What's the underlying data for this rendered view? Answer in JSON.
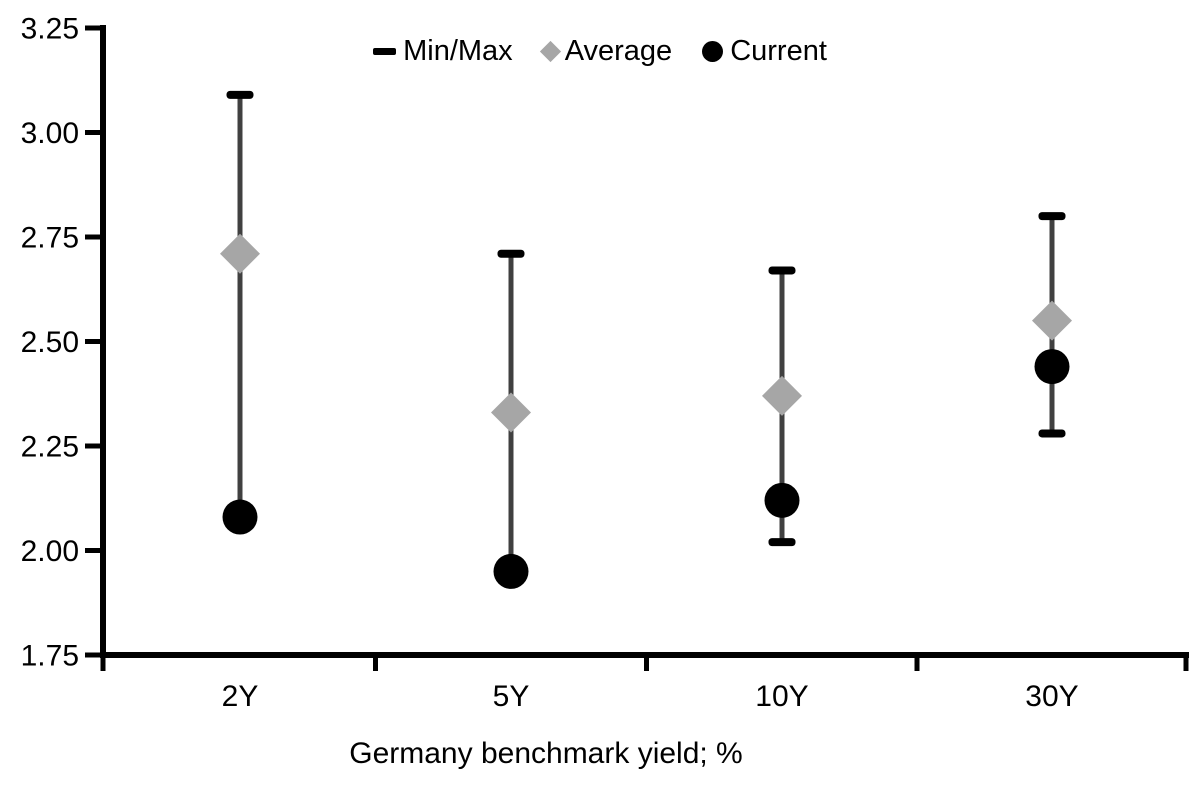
{
  "chart_data": {
    "type": "scatter",
    "subtype": "min-max range bars with average and current markers",
    "categories": [
      "2Y",
      "5Y",
      "10Y",
      "30Y"
    ],
    "series": [
      {
        "name": "Min/Max",
        "role": "range",
        "marker": "dash-cap",
        "min": [
          2.08,
          1.95,
          2.02,
          2.28
        ],
        "max": [
          3.09,
          2.71,
          2.67,
          2.8
        ]
      },
      {
        "name": "Average",
        "role": "marker",
        "marker": "diamond",
        "values": [
          2.71,
          2.33,
          2.37,
          2.55
        ]
      },
      {
        "name": "Current",
        "role": "marker",
        "marker": "circle",
        "values": [
          2.08,
          1.95,
          2.12,
          2.44
        ]
      }
    ],
    "xlabel": "Germany benchmark yield; %",
    "ylabel": "",
    "ylim": [
      1.75,
      3.25
    ],
    "ytick_labels": [
      "3.25",
      "3.00",
      "2.75",
      "2.50",
      "2.25",
      "2.00",
      "1.75"
    ],
    "grid": false,
    "legend_position": "top-center"
  },
  "colors": {
    "background": "#ffffff",
    "axis": "#000000",
    "range_line": "#404040",
    "range_cap": "#000000",
    "average_marker": "#a6a6a6",
    "current_marker": "#000000",
    "text": "#000000"
  }
}
